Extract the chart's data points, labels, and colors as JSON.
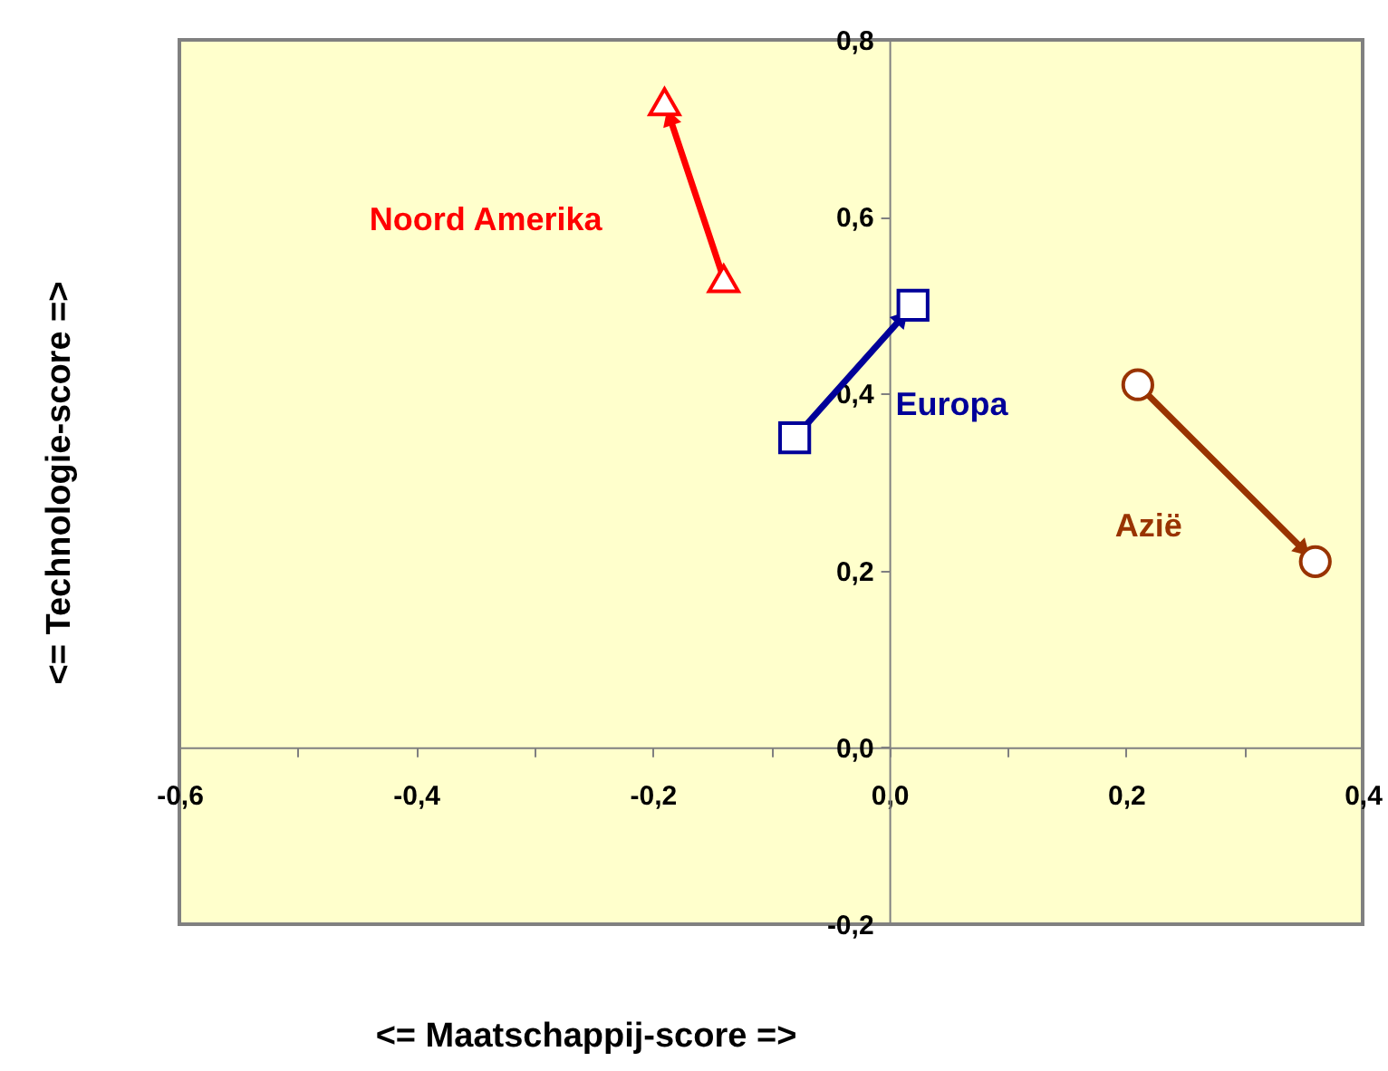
{
  "chart_data": {
    "type": "line",
    "xlabel": "<= Maatschappij-score =>",
    "ylabel": "<= Technologie-score =>",
    "xlim": [
      -0.6,
      0.4
    ],
    "ylim": [
      -0.2,
      0.8
    ],
    "xticks": [
      {
        "value": -0.6,
        "label": "-0,6"
      },
      {
        "value": -0.5,
        "label": null
      },
      {
        "value": -0.4,
        "label": "-0,4"
      },
      {
        "value": -0.3,
        "label": null
      },
      {
        "value": -0.2,
        "label": "-0,2"
      },
      {
        "value": -0.1,
        "label": null
      },
      {
        "value": 0,
        "label": "0,0"
      },
      {
        "value": 0.1,
        "label": null
      },
      {
        "value": 0.2,
        "label": "0,2"
      },
      {
        "value": 0.3,
        "label": null
      },
      {
        "value": 0.4,
        "label": "0,4"
      }
    ],
    "yticks": [
      {
        "value": -0.2,
        "label": "-0,2"
      },
      {
        "value": 0,
        "label": "0,0"
      },
      {
        "value": 0.2,
        "label": "0,2"
      },
      {
        "value": 0.4,
        "label": "0,4"
      },
      {
        "value": 0.6,
        "label": "0,6"
      },
      {
        "value": 0.8,
        "label": "0,8"
      }
    ],
    "series": [
      {
        "name": "Noord Amerika",
        "color": "#ff0000",
        "marker": "triangle",
        "x": [
          -0.14,
          -0.19
        ],
        "values": [
          0.53,
          0.73
        ]
      },
      {
        "name": "Europa",
        "color": "#000099",
        "marker": "square",
        "x": [
          -0.08,
          0.02
        ],
        "values": [
          0.35,
          0.5
        ]
      },
      {
        "name": "Azië",
        "color": "#993300",
        "marker": "circle",
        "x": [
          0.21,
          0.36
        ],
        "values": [
          0.41,
          0.21
        ]
      }
    ]
  }
}
